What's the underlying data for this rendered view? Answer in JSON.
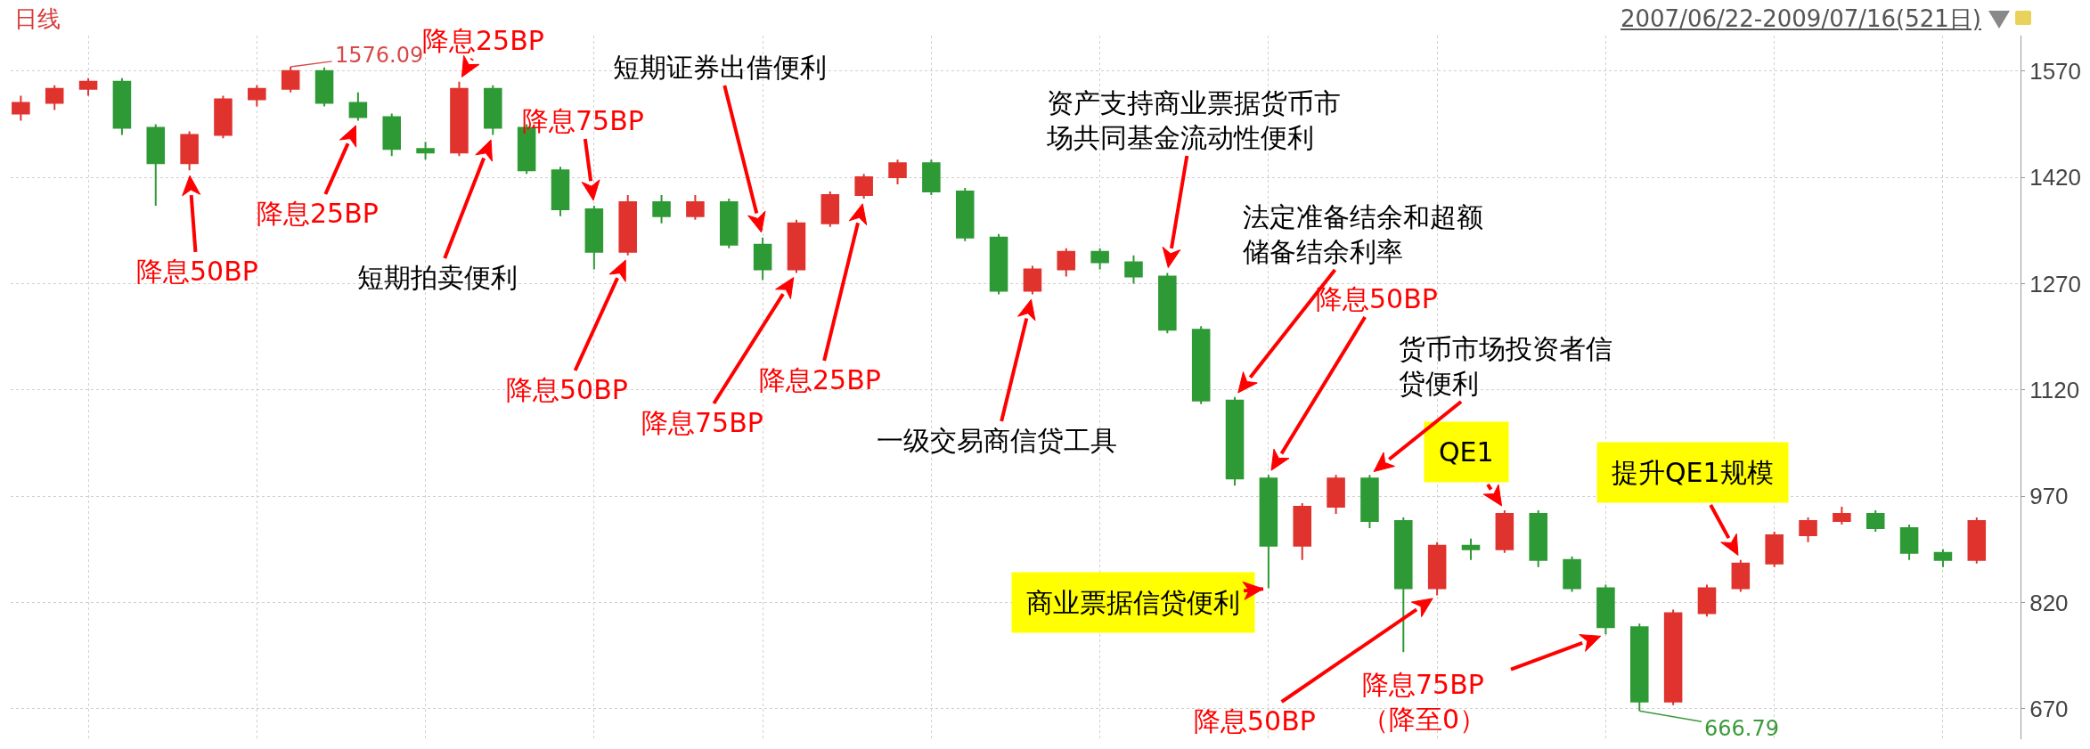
{
  "chart_data": {
    "type": "candlestick",
    "title": "日线",
    "subtitle": "2007/06/22-2009/07/16(521日)",
    "categories": [
      null,
      null,
      null,
      null,
      null,
      null,
      null,
      null,
      null,
      null,
      null,
      null,
      null,
      null,
      null,
      null,
      null,
      null,
      null,
      null,
      null,
      null,
      null,
      null,
      null,
      null,
      null,
      null,
      null,
      null,
      null,
      null,
      null,
      null,
      null,
      null,
      null,
      null,
      null,
      null,
      null,
      null,
      null,
      null,
      null,
      null,
      null,
      null,
      null,
      null,
      null,
      null,
      null,
      null,
      null,
      null,
      null,
      null,
      null
    ],
    "colors": [
      "#e0332e",
      "#e0332e",
      "#e0332e",
      "#2e9a35",
      "#2e9a35",
      "#e0332e",
      "#e0332e",
      "#e0332e",
      "#e0332e",
      "#2e9a35",
      "#2e9a35",
      "#2e9a35",
      "#2e9a35",
      "#e0332e",
      "#2e9a35",
      "#2e9a35",
      "#2e9a35",
      "#2e9a35",
      "#e0332e",
      "#2e9a35",
      "#e0332e",
      "#2e9a35",
      "#2e9a35",
      "#e0332e",
      "#e0332e",
      "#e0332e",
      "#e0332e",
      "#2e9a35",
      "#2e9a35",
      "#2e9a35",
      "#e0332e",
      "#e0332e",
      "#2e9a35",
      "#2e9a35",
      "#2e9a35",
      "#2e9a35",
      "#2e9a35",
      "#2e9a35",
      "#e0332e",
      "#e0332e",
      "#2e9a35",
      "#2e9a35",
      "#e0332e",
      "#2e9a35",
      "#e0332e",
      "#2e9a35",
      "#2e9a35",
      "#2e9a35",
      "#2e9a35",
      "#e0332e",
      "#e0332e",
      "#e0332e",
      "#e0332e",
      "#e0332e",
      "#e0332e",
      "#2e9a35",
      "#2e9a35",
      "#2e9a35",
      "#e0332e"
    ],
    "ohlc": [
      [
        1510,
        1535,
        1500,
        1525
      ],
      [
        1525,
        1550,
        1515,
        1545
      ],
      [
        1545,
        1560,
        1535,
        1555
      ],
      [
        1555,
        1560,
        1480,
        1490
      ],
      [
        1490,
        1495,
        1380,
        1440
      ],
      [
        1440,
        1485,
        1430,
        1480
      ],
      [
        1480,
        1535,
        1475,
        1530
      ],
      [
        1530,
        1550,
        1520,
        1545
      ],
      [
        1545,
        1576.09,
        1540,
        1570
      ],
      [
        1570,
        1575,
        1520,
        1525
      ],
      [
        1525,
        1540,
        1500,
        1505
      ],
      [
        1505,
        1510,
        1450,
        1460
      ],
      [
        1460,
        1470,
        1445,
        1455
      ],
      [
        1455,
        1555,
        1450,
        1545
      ],
      [
        1545,
        1550,
        1480,
        1490
      ],
      [
        1490,
        1495,
        1425,
        1430
      ],
      [
        1430,
        1435,
        1365,
        1375
      ],
      [
        1375,
        1380,
        1290,
        1315
      ],
      [
        1315,
        1395,
        1310,
        1385
      ],
      [
        1385,
        1395,
        1355,
        1365
      ],
      [
        1365,
        1395,
        1360,
        1385
      ],
      [
        1385,
        1390,
        1320,
        1325
      ],
      [
        1325,
        1335,
        1275,
        1290
      ],
      [
        1290,
        1360,
        1285,
        1355
      ],
      [
        1355,
        1400,
        1350,
        1395
      ],
      [
        1395,
        1425,
        1390,
        1420
      ],
      [
        1420,
        1445,
        1410,
        1440
      ],
      [
        1440,
        1445,
        1395,
        1400
      ],
      [
        1400,
        1405,
        1330,
        1335
      ],
      [
        1335,
        1340,
        1255,
        1260
      ],
      [
        1260,
        1295,
        1255,
        1290
      ],
      [
        1290,
        1320,
        1280,
        1315
      ],
      [
        1315,
        1320,
        1290,
        1300
      ],
      [
        1300,
        1310,
        1270,
        1280
      ],
      [
        1280,
        1285,
        1200,
        1205
      ],
      [
        1205,
        1210,
        1100,
        1105
      ],
      [
        1105,
        1110,
        985,
        995
      ],
      [
        995,
        1000,
        840,
        900
      ],
      [
        900,
        960,
        880,
        955
      ],
      [
        955,
        1000,
        945,
        995
      ],
      [
        995,
        1000,
        925,
        935
      ],
      [
        935,
        940,
        750,
        840
      ],
      [
        840,
        905,
        830,
        900
      ],
      [
        900,
        910,
        880,
        895
      ],
      [
        895,
        950,
        890,
        945
      ],
      [
        945,
        950,
        870,
        880
      ],
      [
        880,
        885,
        835,
        840
      ],
      [
        840,
        845,
        775,
        785
      ],
      [
        785,
        790,
        666.79,
        680
      ],
      [
        680,
        810,
        675,
        805
      ],
      [
        805,
        845,
        800,
        840
      ],
      [
        840,
        880,
        835,
        875
      ],
      [
        875,
        920,
        870,
        915
      ],
      [
        915,
        940,
        905,
        935
      ],
      [
        935,
        955,
        930,
        945
      ],
      [
        945,
        950,
        920,
        925
      ],
      [
        925,
        930,
        880,
        890
      ],
      [
        890,
        895,
        870,
        880
      ],
      [
        880,
        940,
        875,
        935
      ]
    ],
    "ylim": [
      627,
      1620
    ],
    "yticks": [
      670,
      820,
      970,
      1120,
      1270,
      1420,
      1570
    ],
    "grid": true,
    "tick_labels": "y",
    "annotations": [
      "降息50BP",
      "降息25BP",
      "降息25BP",
      "短期拍卖便利",
      "降息75BP",
      "降息50BP",
      "短期证券出借便利",
      "降息75BP",
      "降息25BP",
      "一级交易商信贷工具",
      "资产支持商业票据货币市场共同基金流动性便利",
      "法定准备结余和超额储备结余利率",
      "降息50BP",
      "货币市场投资者信贷便利",
      "商业票据信贷便利",
      "QE1",
      "降息50BP",
      "降息75BP（降至0）",
      "提升QE1规模",
      "1576.09",
      "666.79"
    ]
  }
}
